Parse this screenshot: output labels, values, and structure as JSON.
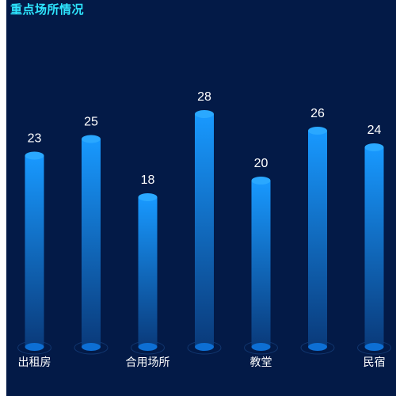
{
  "panel": {
    "title": "重点场所情况"
  },
  "colors": {
    "background": "#031a47",
    "title": "#2ee6ff",
    "bar_top": "#1899ff",
    "bar_bottom": "#0a3a7a",
    "cap": "#2aa8ff",
    "base": "#0d6fd4"
  },
  "chart_data": {
    "type": "bar",
    "categories": [
      "出租房",
      "",
      "合用场所",
      "",
      "教堂",
      "",
      "民宿"
    ],
    "values": [
      23,
      25,
      18,
      28,
      20,
      26,
      24
    ],
    "title": "",
    "xlabel": "",
    "ylabel": "",
    "ylim": [
      0,
      30
    ],
    "grid": false,
    "legend": "none"
  }
}
